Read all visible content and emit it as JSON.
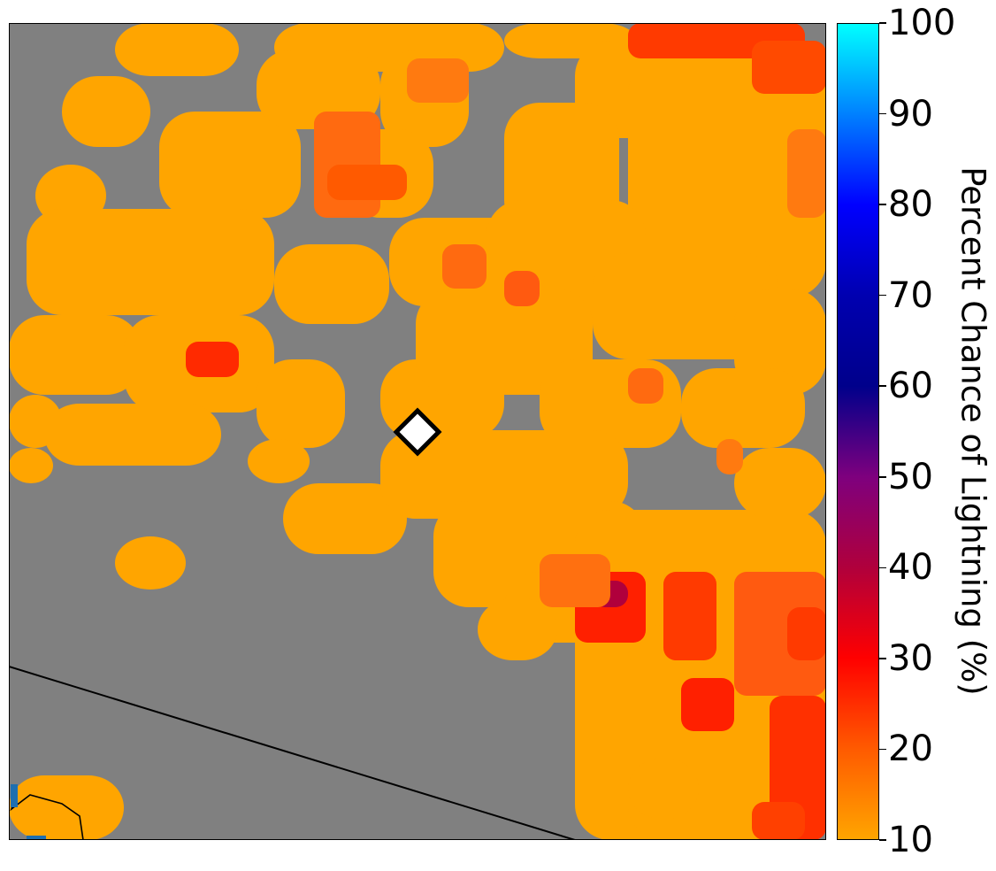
{
  "chart_data": {
    "type": "heatmap",
    "title": "",
    "colorbar": {
      "label": "Percent Chance of Lightning (%)",
      "range": [
        10,
        100
      ],
      "ticks": [
        10,
        20,
        30,
        40,
        50,
        60,
        70,
        80,
        90,
        100
      ],
      "tick_labels": [
        "10",
        "20",
        "30",
        "40",
        "50",
        "60",
        "70",
        "80",
        "90",
        "100"
      ],
      "colors": [
        {
          "value": 10,
          "color": "#FFA500"
        },
        {
          "value": 20,
          "color": "#FF5A00"
        },
        {
          "value": 30,
          "color": "#FF0000"
        },
        {
          "value": 40,
          "color": "#B0003C"
        },
        {
          "value": 50,
          "color": "#7E007E"
        },
        {
          "value": 60,
          "color": "#00008B"
        },
        {
          "value": 70,
          "color": "#0000B0"
        },
        {
          "value": 80,
          "color": "#0000FF"
        },
        {
          "value": 90,
          "color": "#0080FF"
        },
        {
          "value": 100,
          "color": "#00FFFF"
        }
      ]
    },
    "below_threshold_color": "#808080",
    "border_color": "#000000",
    "marker": {
      "shape": "diamond",
      "fill": "#FFFFFF",
      "edge": "#000000"
    },
    "regions": [
      {
        "level": 15,
        "polys": [
          [
            0,
            0
          ],
          [
            100,
            0
          ],
          [
            100,
            100
          ],
          [
            0,
            100
          ]
        ]
      }
    ]
  }
}
